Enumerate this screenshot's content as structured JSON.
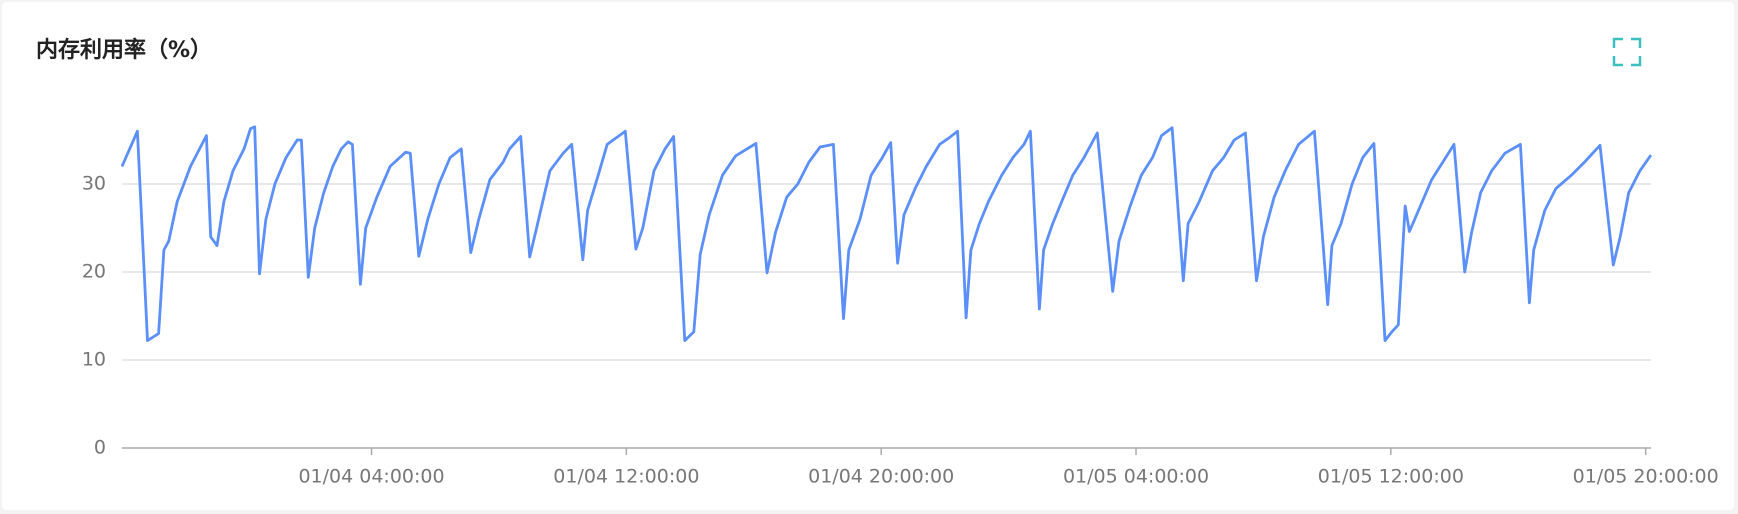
{
  "chart_data": {
    "type": "line",
    "title": "内存利用率（%）",
    "x": [
      "01/03 20:10:00",
      "01/03 20:39:00",
      "01/03 20:58:00",
      "01/03 21:19:00",
      "01/03 21:29:00",
      "01/03 21:38:00",
      "01/03 21:54:00",
      "01/03 22:19:00",
      "01/03 22:49:00",
      "01/03 22:57:00",
      "01/03 23:09:00",
      "01/03 23:22:00",
      "01/03 23:39:00",
      "01/04 00:00:00",
      "01/04 00:12:00",
      "01/04 00:20:00",
      "01/04 00:29:00",
      "01/04 00:41:00",
      "01/04 00:58:00",
      "01/04 01:19:00",
      "01/04 01:40:00",
      "01/04 01:48:00",
      "01/04 02:01:00",
      "01/04 02:13:00",
      "01/04 02:30:00",
      "01/04 02:47:00",
      "01/04 03:03:00",
      "01/04 03:16:00",
      "01/04 03:24:00",
      "01/04 03:39:00",
      "01/04 03:49:00",
      "01/04 04:10:00",
      "01/04 04:35:00",
      "01/04 05:04:00",
      "01/04 05:13:00",
      "01/04 05:29:00",
      "01/04 05:46:00",
      "01/04 06:07:00",
      "01/04 06:28:00",
      "01/04 06:49:00",
      "01/04 07:07:00",
      "01/04 07:22:00",
      "01/04 07:43:00",
      "01/04 08:08:00",
      "01/04 08:20:00",
      "01/04 08:41:00",
      "01/04 08:58:00",
      "01/04 09:11:00",
      "01/04 09:36:00",
      "01/04 10:01:00",
      "01/04 10:17:00",
      "01/04 10:38:00",
      "01/04 10:47:00",
      "01/04 11:07:00",
      "01/04 11:24:00",
      "01/04 11:58:00",
      "01/04 12:18:00",
      "01/04 12:31:00",
      "01/04 12:52:00",
      "01/04 13:13:00",
      "01/04 13:29:00",
      "01/04 13:50:00",
      "01/04 14:07:00",
      "01/04 14:19:00",
      "01/04 14:36:00",
      "01/04 15:01:00",
      "01/04 15:26:00",
      "01/04 16:04:00",
      "01/04 16:25:00",
      "01/04 16:41:00",
      "01/04 17:02:00",
      "01/04 17:23:00",
      "01/04 17:44:00",
      "01/04 18:05:00",
      "01/04 18:30:00",
      "01/04 18:49:00",
      "01/04 18:59:00",
      "01/04 19:20:00",
      "01/04 19:41:00",
      "01/04 20:02:00",
      "01/04 20:18:00",
      "01/04 20:31:00",
      "01/04 20:43:00",
      "01/04 21:04:00",
      "01/04 21:25:00",
      "01/04 21:50:00",
      "01/04 22:07:00",
      "01/04 22:24:00",
      "01/04 22:40:00",
      "01/04 22:49:00",
      "01/04 23:05:00",
      "01/04 23:22:00",
      "01/04 23:47:00",
      "01/05 00:08:00",
      "01/05 00:29:00",
      "01/05 00:41:00",
      "01/05 00:58:00",
      "01/05 01:06:00",
      "01/05 01:23:00",
      "01/05 01:40:00",
      "01/05 02:01:00",
      "01/05 02:22:00",
      "01/05 02:47:00",
      "01/05 03:16:00",
      "01/05 03:28:00",
      "01/05 03:49:00",
      "01/05 04:10:00",
      "01/05 04:31:00",
      "01/05 04:48:00",
      "01/05 05:08:00",
      "01/05 05:29:00",
      "01/05 05:38:00",
      "01/05 05:59:00",
      "01/05 06:24:00",
      "01/05 06:45:00",
      "01/05 07:05:00",
      "01/05 07:26:00",
      "01/05 07:47:00",
      "01/05 08:00:00",
      "01/05 08:20:00",
      "01/05 08:41:00",
      "01/05 09:06:00",
      "01/05 09:36:00",
      "01/05 10:01:00",
      "01/05 10:09:00",
      "01/05 10:26:00",
      "01/05 10:47:00",
      "01/05 11:07:00",
      "01/05 11:28:00",
      "01/05 11:49:00",
      "01/05 12:02:00",
      "01/05 12:14:00",
      "01/05 12:27:00",
      "01/05 12:35:00",
      "01/05 12:52:00",
      "01/05 13:17:00",
      "01/05 13:38:00",
      "01/05 13:59:00",
      "01/05 14:19:00",
      "01/05 14:32:00",
      "01/05 14:49:00",
      "01/05 15:10:00",
      "01/05 15:35:00",
      "01/05 16:04:00",
      "01/05 16:21:00",
      "01/05 16:29:00",
      "01/05 16:50:00",
      "01/05 17:11:00",
      "01/05 17:40:00",
      "01/05 18:05:00",
      "01/05 18:34:00",
      "01/05 18:59:00",
      "01/05 19:12:00",
      "01/05 19:28:00",
      "01/05 19:49:00",
      "01/05 20:10:00"
    ],
    "series": [
      {
        "color": "#5b8ff9",
        "values": [
          32,
          36,
          12.2,
          13,
          22.5,
          23.5,
          28,
          32,
          35.5,
          24,
          23,
          28,
          31.5,
          34,
          36.3,
          36.5,
          19.8,
          26,
          30,
          33,
          35,
          35,
          19.4,
          25,
          29,
          32,
          34,
          34.8,
          34.5,
          18.6,
          25,
          28.5,
          32,
          33.6,
          33.5,
          21.8,
          26,
          30,
          33,
          34,
          22.2,
          26,
          30.5,
          32.5,
          34,
          35.4,
          21.7,
          25,
          31.5,
          33.5,
          34.5,
          21.4,
          27,
          31,
          34.5,
          36,
          22.6,
          25,
          31.5,
          34,
          35.4,
          12.2,
          13.2,
          22,
          26.5,
          31,
          33.2,
          34.6,
          19.9,
          24.5,
          28.5,
          30,
          32.5,
          34.2,
          34.5,
          14.7,
          22.5,
          26,
          31,
          33,
          34.7,
          21,
          26.5,
          29.5,
          32,
          34.5,
          35.2,
          36,
          14.8,
          22.5,
          25.5,
          28,
          31,
          33,
          34.5,
          36,
          15.8,
          22.5,
          25.5,
          28,
          31,
          33,
          35.8,
          17.8,
          23.5,
          27.5,
          31,
          33,
          35.5,
          36.4,
          19,
          25.5,
          28,
          31.5,
          33,
          35,
          35.8,
          19,
          24,
          28.5,
          31.5,
          34.5,
          36,
          16.3,
          23,
          25.5,
          30,
          33,
          34.6,
          12.2,
          13.2,
          14,
          27.5,
          24.6,
          27,
          30.5,
          32.5,
          34.5,
          20,
          24.5,
          29,
          31.5,
          33.5,
          34.5,
          16.5,
          22.5,
          27,
          29.5,
          31,
          32.5,
          34.4,
          20.8,
          24,
          29,
          31.5,
          33.3
        ]
      }
    ],
    "xlim": [
      "01/03 20:10:00",
      "01/05 20:10:00"
    ],
    "xticks": [
      "01/04 04:00:00",
      "01/04 12:00:00",
      "01/04 20:00:00",
      "01/05 04:00:00",
      "01/05 12:00:00",
      "01/05 20:00:00"
    ],
    "ylim": [
      0,
      40
    ],
    "yticks": [
      0,
      10,
      20,
      30
    ],
    "grid": true
  }
}
